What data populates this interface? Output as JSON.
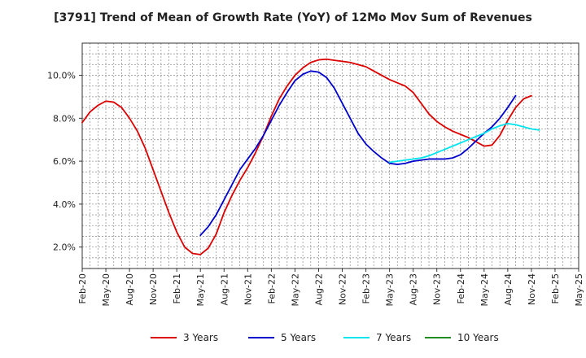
{
  "chart_data": {
    "type": "line",
    "title": "[3791]  Trend of Mean of Growth Rate (YoY) of 12Mo Mov Sum of Revenues",
    "xlabel": "",
    "ylabel": "",
    "ylim": [
      1.0,
      11.5
    ],
    "yticks": [
      2.0,
      4.0,
      6.0,
      8.0,
      10.0
    ],
    "y_tick_labels": [
      "2.0%",
      "4.0%",
      "6.0%",
      "8.0%",
      "10.0%"
    ],
    "grid": true,
    "legend_position": "bottom",
    "x_tick_labels": [
      "Feb-20",
      "May-20",
      "Aug-20",
      "Nov-20",
      "Feb-21",
      "May-21",
      "Aug-21",
      "Nov-21",
      "Feb-22",
      "May-22",
      "Aug-22",
      "Nov-22",
      "Feb-23",
      "May-23",
      "Aug-23",
      "Nov-23",
      "Feb-24",
      "May-24",
      "Aug-24",
      "Nov-24",
      "Feb-25",
      "May-25"
    ],
    "x_start": "Feb-20",
    "months": 63,
    "series": [
      {
        "name": "3 Years",
        "color": "#dd0000",
        "start_index": 0,
        "values": [
          7.8,
          8.3,
          8.6,
          8.8,
          8.75,
          8.5,
          8.0,
          7.4,
          6.6,
          5.6,
          4.6,
          3.6,
          2.7,
          2.0,
          1.7,
          1.65,
          1.95,
          2.6,
          3.6,
          4.4,
          5.1,
          5.7,
          6.4,
          7.2,
          8.1,
          8.9,
          9.5,
          10.0,
          10.35,
          10.6,
          10.72,
          10.75,
          10.7,
          10.65,
          10.6,
          10.5,
          10.4,
          10.2,
          10.0,
          9.8,
          9.65,
          9.5,
          9.2,
          8.7,
          8.2,
          7.85,
          7.6,
          7.4,
          7.25,
          7.1,
          6.9,
          6.7,
          6.75,
          7.2,
          7.9,
          8.5,
          8.9,
          9.05
        ]
      },
      {
        "name": "5 Years",
        "color": "#0000cc",
        "start_index": 15,
        "values": [
          2.55,
          2.95,
          3.5,
          4.2,
          4.9,
          5.6,
          6.1,
          6.6,
          7.2,
          7.9,
          8.6,
          9.2,
          9.75,
          10.05,
          10.2,
          10.15,
          9.9,
          9.4,
          8.7,
          8.0,
          7.3,
          6.8,
          6.45,
          6.15,
          5.9,
          5.85,
          5.9,
          6.0,
          6.05,
          6.1,
          6.1,
          6.1,
          6.15,
          6.3,
          6.6,
          6.95,
          7.3,
          7.6,
          8.0,
          8.5,
          9.05
        ]
      },
      {
        "name": "7 Years",
        "color": "#00e5ee",
        "start_index": 39,
        "values": [
          5.95,
          6.0,
          6.05,
          6.1,
          6.15,
          6.25,
          6.4,
          6.55,
          6.7,
          6.85,
          7.0,
          7.15,
          7.3,
          7.5,
          7.65,
          7.75,
          7.7,
          7.6,
          7.5,
          7.45
        ]
      },
      {
        "name": "10 Years",
        "color": "#228b22",
        "start_index": 0,
        "values": []
      }
    ]
  }
}
